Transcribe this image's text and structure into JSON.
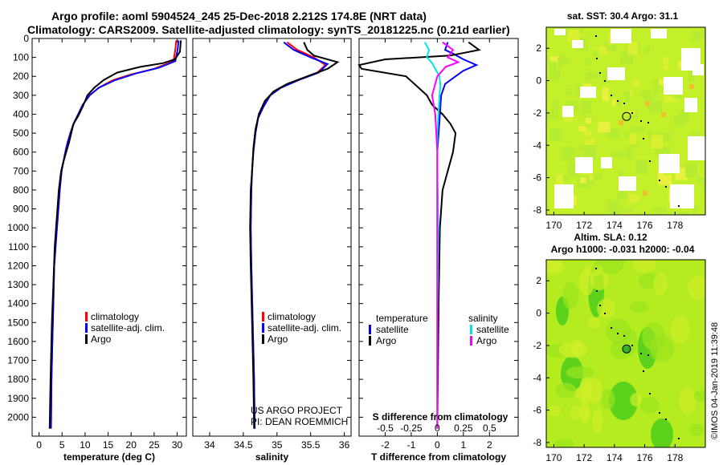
{
  "header": {
    "title_line1": "Argo profile: aoml 5904524_245 25-Dec-2018 2.212S 174.8E (NRT data)",
    "title_line2": "Climatology: CARS2009. Satellite-adjusted climatology: synTS_20181225.nc (0.21d earlier)"
  },
  "footer": {
    "credit_line1": "US ARGO PROJECT",
    "credit_line2": "PI: DEAN ROEMMICH",
    "imos_stamp": "©IMOS 04-Jan-2019 11:39:48"
  },
  "colors": {
    "argo": "#000000",
    "climatology": "#ff0000",
    "satellite": "#0000ff",
    "s_satellite": "#00e5e5",
    "s_argo": "#ff00ff"
  },
  "chart_data": [
    {
      "type": "line",
      "xlabel": "temperature (deg C)",
      "xlim": [
        -1.5,
        32
      ],
      "xticks": [
        0,
        5,
        10,
        15,
        20,
        25,
        30
      ],
      "ylim": [
        2100,
        0
      ],
      "yticks": [
        0,
        100,
        200,
        300,
        400,
        500,
        600,
        700,
        800,
        900,
        1000,
        1100,
        1200,
        1300,
        1400,
        1500,
        1600,
        1700,
        1800,
        1900,
        2000
      ],
      "legend": [
        "climatology",
        "satellite-adj. clim.",
        "Argo"
      ],
      "legend_position": "lower-right",
      "series": [
        {
          "name": "climatology",
          "x": [
            29.8,
            29.6,
            29.2,
            25,
            20,
            16,
            13,
            11,
            9.5,
            8.5,
            7.5,
            6.8,
            6.2,
            5.7,
            5.3,
            4.9,
            4.5,
            4.2,
            3.9,
            3.6,
            3.3,
            3.1,
            2.9,
            2.7,
            2.6
          ],
          "y": [
            10,
            60,
            120,
            160,
            190,
            220,
            260,
            300,
            350,
            400,
            450,
            500,
            550,
            600,
            650,
            700,
            800,
            900,
            1000,
            1100,
            1200,
            1400,
            1600,
            1800,
            2060
          ]
        },
        {
          "name": "satellite-adj. clim.",
          "x": [
            30.3,
            30.1,
            29.6,
            26,
            21,
            16.5,
            13,
            11,
            9.5,
            8.5,
            7.5,
            6.8,
            6.2,
            5.7,
            5.3,
            4.9,
            4.5,
            4.2,
            3.9,
            3.6,
            3.3,
            3.1,
            2.9,
            2.7,
            2.6
          ],
          "y": [
            10,
            60,
            120,
            155,
            185,
            220,
            260,
            300,
            350,
            400,
            450,
            500,
            550,
            600,
            650,
            700,
            800,
            900,
            1000,
            1100,
            1200,
            1400,
            1600,
            1800,
            2060
          ]
        },
        {
          "name": "Argo",
          "x": [
            30.8,
            30.6,
            29.5,
            27,
            22,
            17,
            14,
            12,
            10.5,
            9.5,
            8.5,
            7.5,
            7,
            6.5,
            5.9,
            5.3,
            4.8,
            4.3,
            4,
            3.7,
            3.4,
            3.1,
            2.8,
            2.5,
            2.3
          ],
          "y": [
            10,
            70,
            110,
            130,
            150,
            180,
            220,
            260,
            300,
            360,
            410,
            450,
            500,
            550,
            600,
            650,
            700,
            800,
            900,
            1000,
            1100,
            1300,
            1500,
            1800,
            2060
          ]
        }
      ]
    },
    {
      "type": "line",
      "xlabel": "salinity",
      "xlim": [
        33.75,
        36.1
      ],
      "xticks": [
        34,
        34.5,
        35,
        35.5,
        36
      ],
      "ylim": [
        2100,
        0
      ],
      "legend": [
        "climatology",
        "satellite-adj. clim.",
        "Argo"
      ],
      "legend_position": "lower-right",
      "series": [
        {
          "name": "climatology",
          "x": [
            35.15,
            35.3,
            35.55,
            35.72,
            35.6,
            35.3,
            35.05,
            34.9,
            34.8,
            34.72,
            34.68,
            34.65,
            34.63,
            34.62,
            34.61,
            34.62,
            34.64,
            34.66,
            34.67
          ],
          "y": [
            20,
            60,
            100,
            140,
            180,
            220,
            260,
            300,
            360,
            420,
            500,
            600,
            700,
            800,
            1000,
            1200,
            1500,
            1800,
            2060
          ]
        },
        {
          "name": "satellite-adj. clim.",
          "x": [
            35.1,
            35.25,
            35.5,
            35.75,
            35.62,
            35.32,
            35.06,
            34.9,
            34.8,
            34.72,
            34.68,
            34.65,
            34.63,
            34.62,
            34.61,
            34.62,
            34.64,
            34.66,
            34.67
          ],
          "y": [
            20,
            60,
            100,
            135,
            180,
            220,
            260,
            300,
            360,
            420,
            500,
            600,
            700,
            800,
            1000,
            1200,
            1500,
            1800,
            2060
          ]
        },
        {
          "name": "Argo",
          "x": [
            35.4,
            35.45,
            35.55,
            35.9,
            35.75,
            35.45,
            35.15,
            34.95,
            34.82,
            34.73,
            34.68,
            34.65,
            34.63,
            34.61,
            34.6,
            34.61,
            34.63,
            34.65,
            34.66
          ],
          "y": [
            20,
            60,
            90,
            125,
            160,
            200,
            240,
            280,
            330,
            400,
            480,
            580,
            700,
            800,
            1000,
            1200,
            1500,
            1800,
            2060
          ]
        }
      ]
    },
    {
      "type": "line",
      "xlabel": "T difference from climatology",
      "xlim": [
        -3,
        3.1
      ],
      "xticks": [
        -2,
        -1,
        0,
        1,
        2
      ],
      "secondary_xlabel": "S difference from climatology",
      "secondary_xticks": [
        -0.5,
        -0.25,
        0,
        0.25,
        0.5
      ],
      "secondary_xlim": [
        -0.75,
        0.775
      ],
      "ylim": [
        2100,
        0
      ],
      "legend_left": {
        "heading": "temperature",
        "items": [
          "satellite",
          "Argo"
        ]
      },
      "legend_right": {
        "heading": "salinity",
        "items": [
          "satellite",
          "Argo"
        ]
      },
      "series": [
        {
          "name": "T satellite",
          "axis": "T",
          "x": [
            0.4,
            0.3,
            0.6,
            1.0,
            1.5,
            1.0,
            0.7,
            0.3,
            0.15,
            0.1,
            0.05,
            0,
            0,
            0,
            0,
            0
          ],
          "y": [
            20,
            60,
            80,
            110,
            140,
            170,
            200,
            240,
            300,
            400,
            500,
            600,
            800,
            1200,
            1600,
            2060
          ]
        },
        {
          "name": "T Argo",
          "axis": "T",
          "x": [
            1.2,
            1.6,
            0.5,
            -2,
            -3,
            -2.9,
            -1.2,
            -0.8,
            -0.4,
            -0.2,
            0.2,
            0.5,
            0.7,
            0.6,
            0.4,
            0.2,
            0.1,
            0.05,
            0
          ],
          "y": [
            20,
            60,
            90,
            110,
            140,
            160,
            200,
            250,
            300,
            350,
            400,
            450,
            500,
            600,
            700,
            800,
            1000,
            1400,
            2060
          ]
        },
        {
          "name": "S satellite",
          "axis": "S",
          "x": [
            -0.12,
            -0.08,
            -0.1,
            -0.05,
            -0.02,
            0.02,
            0.03,
            0.02,
            0.01,
            0,
            0,
            0.01,
            0,
            0
          ],
          "y": [
            20,
            60,
            100,
            130,
            160,
            200,
            250,
            300,
            400,
            500,
            700,
            1000,
            1500,
            2060
          ]
        },
        {
          "name": "S Argo",
          "axis": "S",
          "x": [
            0.05,
            0.15,
            0.1,
            0.2,
            0.08,
            0,
            -0.05,
            -0.02,
            0,
            0,
            0,
            0
          ],
          "y": [
            20,
            60,
            100,
            125,
            150,
            200,
            300,
            400,
            600,
            1000,
            1500,
            2060
          ]
        }
      ]
    },
    {
      "type": "heatmap",
      "title": "sat. SST: 30.4 Argo: 31.1",
      "xticks": [
        170,
        172,
        174,
        176,
        178
      ],
      "yticks": [
        2,
        0,
        -2,
        -4,
        -6,
        -8
      ],
      "xlim": [
        169.5,
        180
      ],
      "ylim": [
        -8.3,
        3.3
      ],
      "marker": {
        "lon": 174.8,
        "lat": -2.212,
        "fill": false
      }
    },
    {
      "type": "heatmap",
      "title_line1": "Altim. SLA: 0.12",
      "title_line2": "Argo h1000: -0.031 h2000: -0.04",
      "xticks": [
        170,
        172,
        174,
        176,
        178
      ],
      "yticks": [
        2,
        0,
        -2,
        -4,
        -6,
        -8
      ],
      "xlim": [
        169.5,
        180
      ],
      "ylim": [
        -8.3,
        3.3
      ],
      "marker": {
        "lon": 174.8,
        "lat": -2.212,
        "fill": true
      }
    }
  ]
}
